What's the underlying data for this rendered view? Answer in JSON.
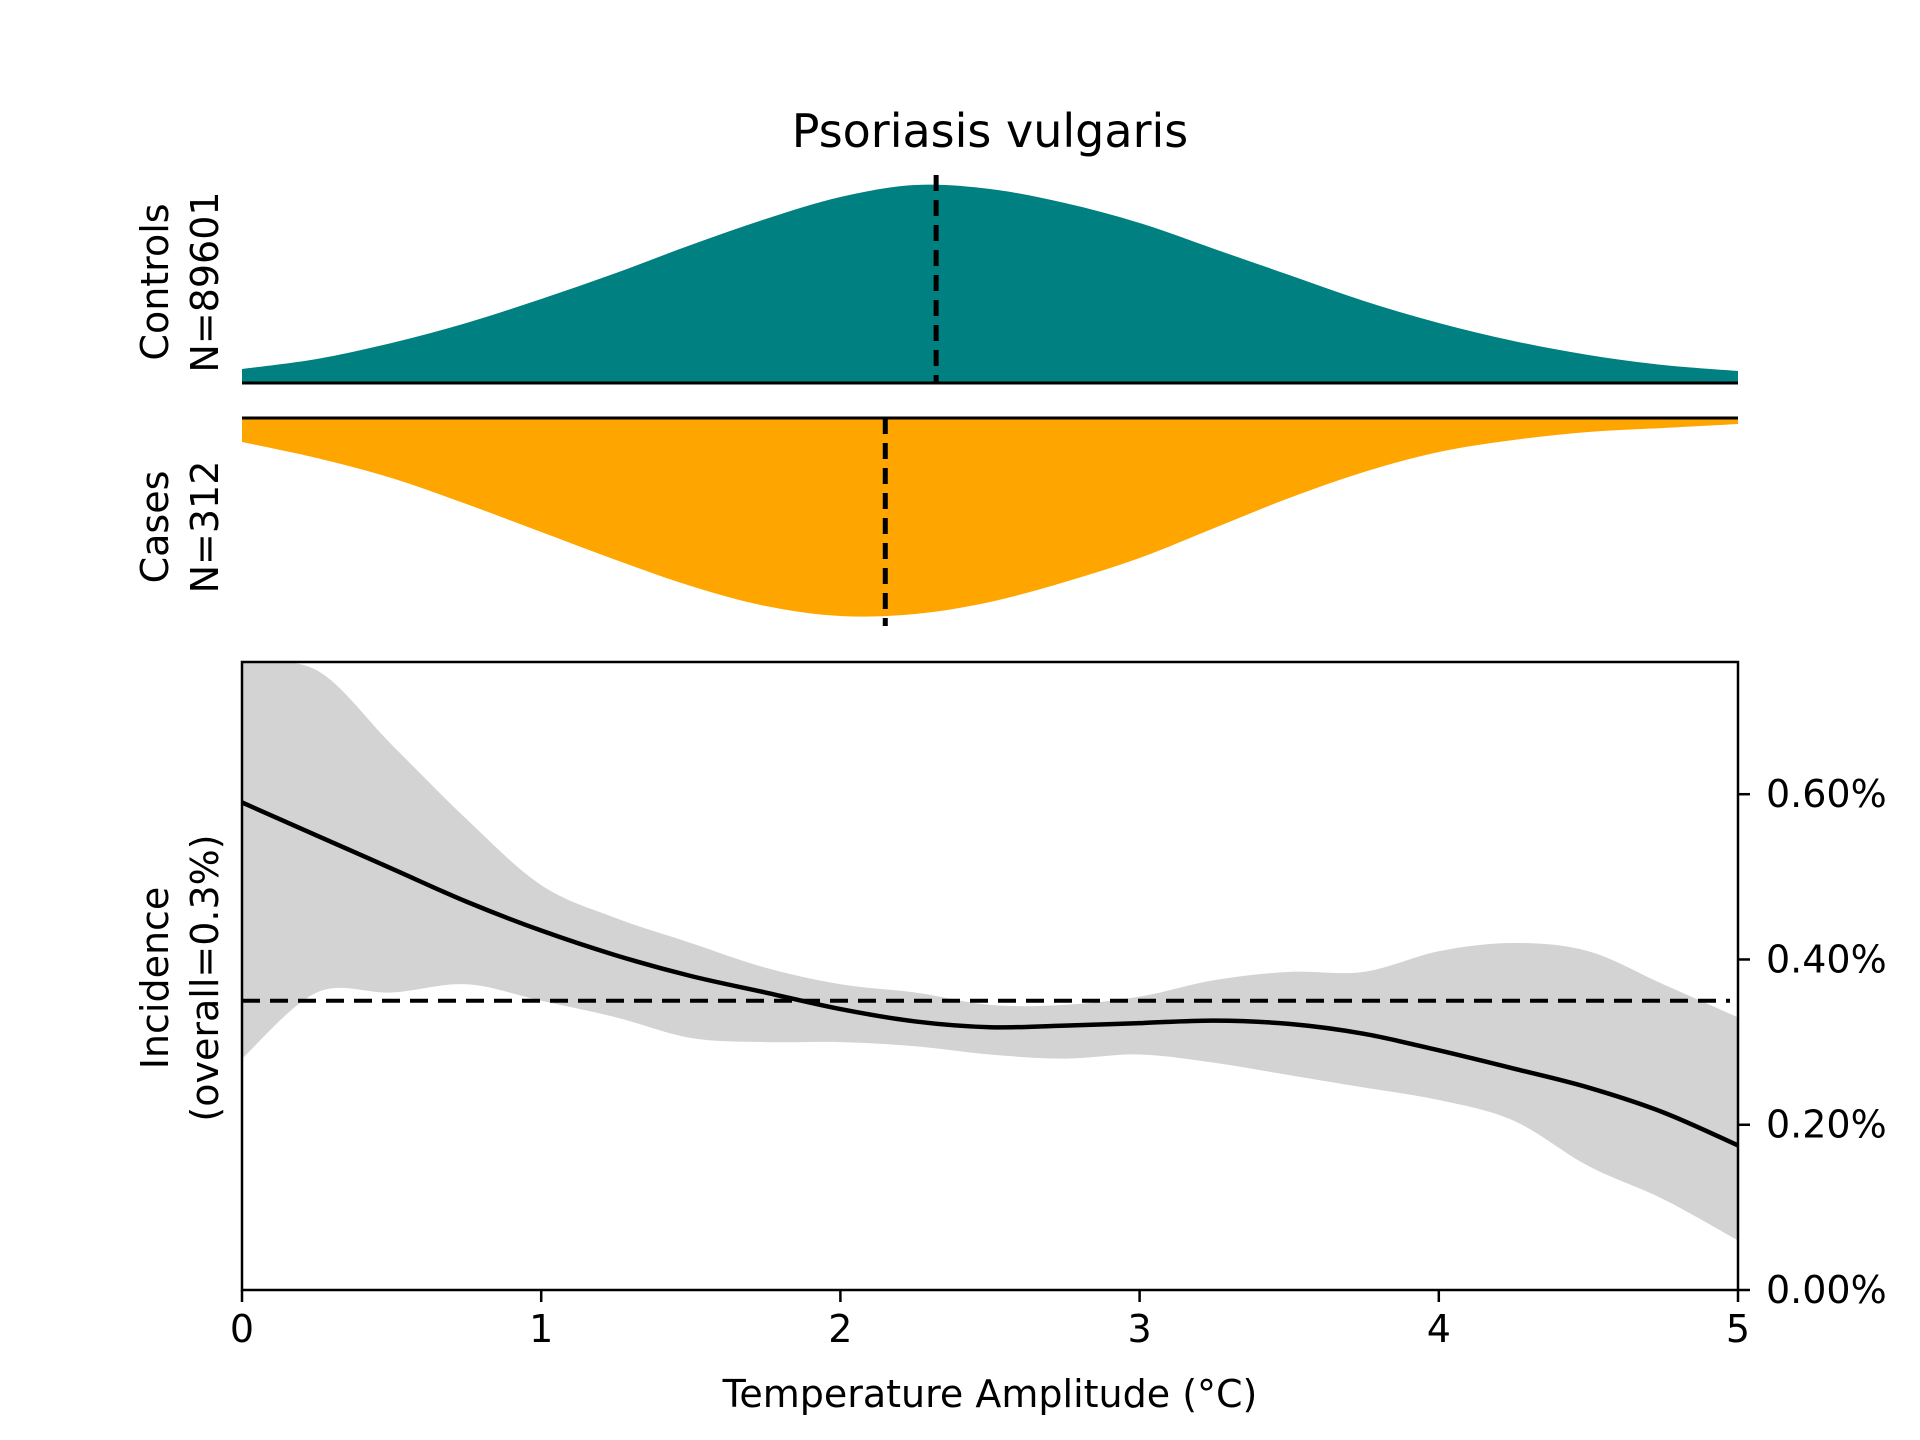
{
  "chart_data": [
    {
      "type": "area",
      "panel": "controls-density",
      "title": "Psoriasis vulgaris",
      "ylabel_line1": "Controls",
      "ylabel_line2": "N=89601",
      "x": [
        0,
        0.25,
        0.5,
        0.75,
        1.0,
        1.25,
        1.5,
        1.75,
        2.0,
        2.25,
        2.5,
        2.75,
        3.0,
        3.25,
        3.5,
        3.75,
        4.0,
        4.25,
        4.5,
        4.75,
        5.0
      ],
      "density": [
        0.07,
        0.12,
        0.2,
        0.3,
        0.42,
        0.55,
        0.69,
        0.82,
        0.93,
        0.99,
        0.97,
        0.9,
        0.8,
        0.67,
        0.54,
        0.41,
        0.3,
        0.21,
        0.14,
        0.09,
        0.06
      ],
      "mean_marker": 2.32,
      "color": "#008080"
    },
    {
      "type": "area",
      "panel": "cases-density",
      "ylabel_line1": "Cases",
      "ylabel_line2": "N=312",
      "x": [
        0,
        0.25,
        0.5,
        0.75,
        1.0,
        1.25,
        1.5,
        1.75,
        2.0,
        2.25,
        2.5,
        2.75,
        3.0,
        3.25,
        3.5,
        3.75,
        4.0,
        4.25,
        4.5,
        4.75,
        5.0
      ],
      "density": [
        0.12,
        0.2,
        0.3,
        0.43,
        0.57,
        0.71,
        0.84,
        0.94,
        0.99,
        0.98,
        0.92,
        0.82,
        0.7,
        0.55,
        0.4,
        0.27,
        0.17,
        0.11,
        0.07,
        0.05,
        0.03
      ],
      "mean_marker": 2.15,
      "color": "#FFA500"
    },
    {
      "type": "line",
      "panel": "incidence",
      "xlabel": "Temperature Amplitude (°C)",
      "ylabel_line1": "Incidence",
      "ylabel_line2": "(overall=0.3%)",
      "xlim": [
        0,
        5
      ],
      "ylim": [
        0,
        0.0076
      ],
      "x_ticks": [
        0,
        1,
        2,
        3,
        4,
        5
      ],
      "x_tick_labels": [
        "0",
        "1",
        "2",
        "3",
        "4",
        "5"
      ],
      "y_ticks": [
        0,
        0.002,
        0.004,
        0.006
      ],
      "y_tick_labels": [
        "0.00%",
        "0.20%",
        "0.40%",
        "0.60%"
      ],
      "reference_line": 0.0035,
      "x": [
        0,
        0.25,
        0.5,
        0.75,
        1.0,
        1.25,
        1.5,
        1.75,
        2.0,
        2.25,
        2.5,
        2.75,
        3.0,
        3.25,
        3.5,
        3.75,
        4.0,
        4.25,
        4.5,
        4.75,
        5.0
      ],
      "y": [
        0.0059,
        0.0055,
        0.0051,
        0.0047,
        0.00435,
        0.00405,
        0.0038,
        0.0036,
        0.0034,
        0.00325,
        0.00318,
        0.0032,
        0.00323,
        0.00326,
        0.00322,
        0.0031,
        0.0029,
        0.00268,
        0.00245,
        0.00215,
        0.00175
      ],
      "ci_upper": [
        0.0085,
        0.0075,
        0.0066,
        0.0057,
        0.0049,
        0.0045,
        0.0042,
        0.0039,
        0.0037,
        0.0036,
        0.00345,
        0.00345,
        0.00355,
        0.00375,
        0.00385,
        0.00385,
        0.0041,
        0.0042,
        0.0041,
        0.0037,
        0.0033
      ],
      "ci_lower": [
        0.0028,
        0.0036,
        0.0036,
        0.0037,
        0.0035,
        0.0033,
        0.00305,
        0.003,
        0.003,
        0.00295,
        0.00285,
        0.0028,
        0.00285,
        0.00275,
        0.0026,
        0.00245,
        0.0023,
        0.00205,
        0.0015,
        0.0011,
        0.0006
      ],
      "ci_color": "#d3d3d3",
      "line_color": "#000000"
    }
  ]
}
